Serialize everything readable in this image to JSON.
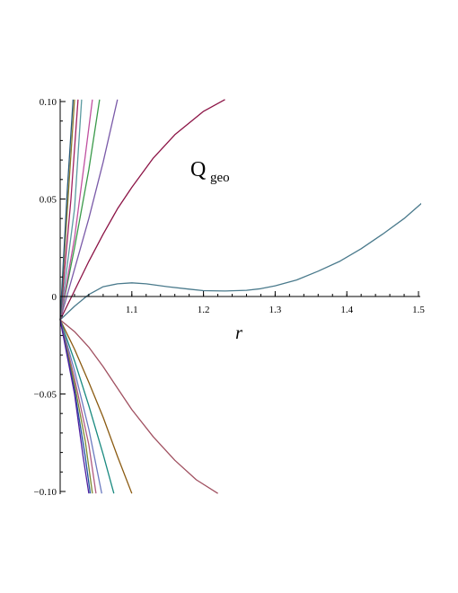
{
  "chart_data": {
    "type": "line",
    "title": "",
    "annotation": {
      "main": "Q",
      "sub": "geo"
    },
    "xlabel": "r",
    "ylabel": "",
    "xlim": [
      1.0,
      1.5
    ],
    "ylim": [
      -0.1,
      0.1
    ],
    "x_ticks": [
      {
        "value": 1.1,
        "label": "1.1"
      },
      {
        "value": 1.2,
        "label": "1.2"
      },
      {
        "value": 1.3,
        "label": "1.3"
      },
      {
        "value": 1.4,
        "label": "1.4"
      },
      {
        "value": 1.5,
        "label": "1.5"
      }
    ],
    "y_ticks": [
      {
        "value": 0.1,
        "label": "0.10"
      },
      {
        "value": 0.05,
        "label": "0.05"
      },
      {
        "value": 0.0,
        "label": "0"
      },
      {
        "value": -0.05,
        "label": "−0.05"
      },
      {
        "value": -0.1,
        "label": "−0.10"
      }
    ],
    "grid": false,
    "series": [
      {
        "color": "#4a7a8c",
        "x": [
          1.0,
          1.02,
          1.04,
          1.06,
          1.08,
          1.1,
          1.12,
          1.15,
          1.18,
          1.2,
          1.23,
          1.26,
          1.28,
          1.3,
          1.33,
          1.36,
          1.39,
          1.42,
          1.45,
          1.48,
          1.505
        ],
        "y": [
          -0.012,
          -0.005,
          0.001,
          0.005,
          0.0065,
          0.007,
          0.0065,
          0.005,
          0.0038,
          0.003,
          0.0028,
          0.0032,
          0.004,
          0.0055,
          0.0085,
          0.013,
          0.018,
          0.0245,
          0.032,
          0.04,
          0.048
        ]
      },
      {
        "color": "#8c1446",
        "x": [
          1.0,
          1.02,
          1.04,
          1.06,
          1.08,
          1.1,
          1.13,
          1.16,
          1.2,
          1.23
        ],
        "y": [
          -0.012,
          0.003,
          0.018,
          0.032,
          0.045,
          0.056,
          0.071,
          0.083,
          0.095,
          0.101
        ]
      },
      {
        "color": "#7a5aa8",
        "x": [
          1.0,
          1.02,
          1.04,
          1.06,
          1.08
        ],
        "y": [
          -0.012,
          0.014,
          0.04,
          0.069,
          0.101
        ]
      },
      {
        "color": "#3a9a4a",
        "x": [
          1.0,
          1.02,
          1.04,
          1.055
        ],
        "y": [
          -0.012,
          0.025,
          0.065,
          0.101
        ]
      },
      {
        "color": "#c050a0",
        "x": [
          1.0,
          1.02,
          1.035,
          1.045
        ],
        "y": [
          -0.012,
          0.03,
          0.072,
          0.101
        ]
      },
      {
        "color": "#5a9aa0",
        "x": [
          1.0,
          1.02,
          1.03
        ],
        "y": [
          -0.012,
          0.045,
          0.101
        ]
      },
      {
        "color": "#a02060",
        "x": [
          1.0,
          1.015,
          1.025
        ],
        "y": [
          -0.012,
          0.05,
          0.101
        ]
      },
      {
        "color": "#8a7a2a",
        "x": [
          1.0,
          1.01,
          1.02
        ],
        "y": [
          -0.012,
          0.045,
          0.101
        ]
      },
      {
        "color": "#2a5a7a",
        "x": [
          1.0,
          1.01,
          1.018
        ],
        "y": [
          -0.012,
          0.055,
          0.101
        ]
      },
      {
        "color": "#a05060",
        "x": [
          1.0,
          1.02,
          1.04,
          1.06,
          1.08,
          1.1,
          1.13,
          1.16,
          1.19,
          1.22
        ],
        "y": [
          -0.012,
          -0.018,
          -0.026,
          -0.036,
          -0.047,
          -0.058,
          -0.072,
          -0.084,
          -0.094,
          -0.101
        ]
      },
      {
        "color": "#8a5a10",
        "x": [
          1.0,
          1.02,
          1.04,
          1.06,
          1.08,
          1.1
        ],
        "y": [
          -0.012,
          -0.027,
          -0.044,
          -0.062,
          -0.082,
          -0.101
        ]
      },
      {
        "color": "#1a8a80",
        "x": [
          1.0,
          1.02,
          1.04,
          1.06,
          1.075
        ],
        "y": [
          -0.012,
          -0.033,
          -0.056,
          -0.081,
          -0.101
        ]
      },
      {
        "color": "#6a7ac0",
        "x": [
          1.0,
          1.02,
          1.04,
          1.058
        ],
        "y": [
          -0.012,
          -0.038,
          -0.068,
          -0.101
        ]
      },
      {
        "color": "#b05a80",
        "x": [
          1.0,
          1.02,
          1.04,
          1.05
        ],
        "y": [
          -0.012,
          -0.042,
          -0.076,
          -0.101
        ]
      },
      {
        "color": "#7a8a30",
        "x": [
          1.0,
          1.02,
          1.035,
          1.045
        ],
        "y": [
          -0.012,
          -0.045,
          -0.074,
          -0.101
        ]
      },
      {
        "color": "#2050a0",
        "x": [
          1.0,
          1.02,
          1.035,
          1.042
        ],
        "y": [
          -0.012,
          -0.048,
          -0.082,
          -0.101
        ]
      },
      {
        "color": "#5020a0",
        "x": [
          1.0,
          1.02,
          1.032,
          1.04
        ],
        "y": [
          -0.012,
          -0.05,
          -0.082,
          -0.101
        ]
      }
    ]
  }
}
